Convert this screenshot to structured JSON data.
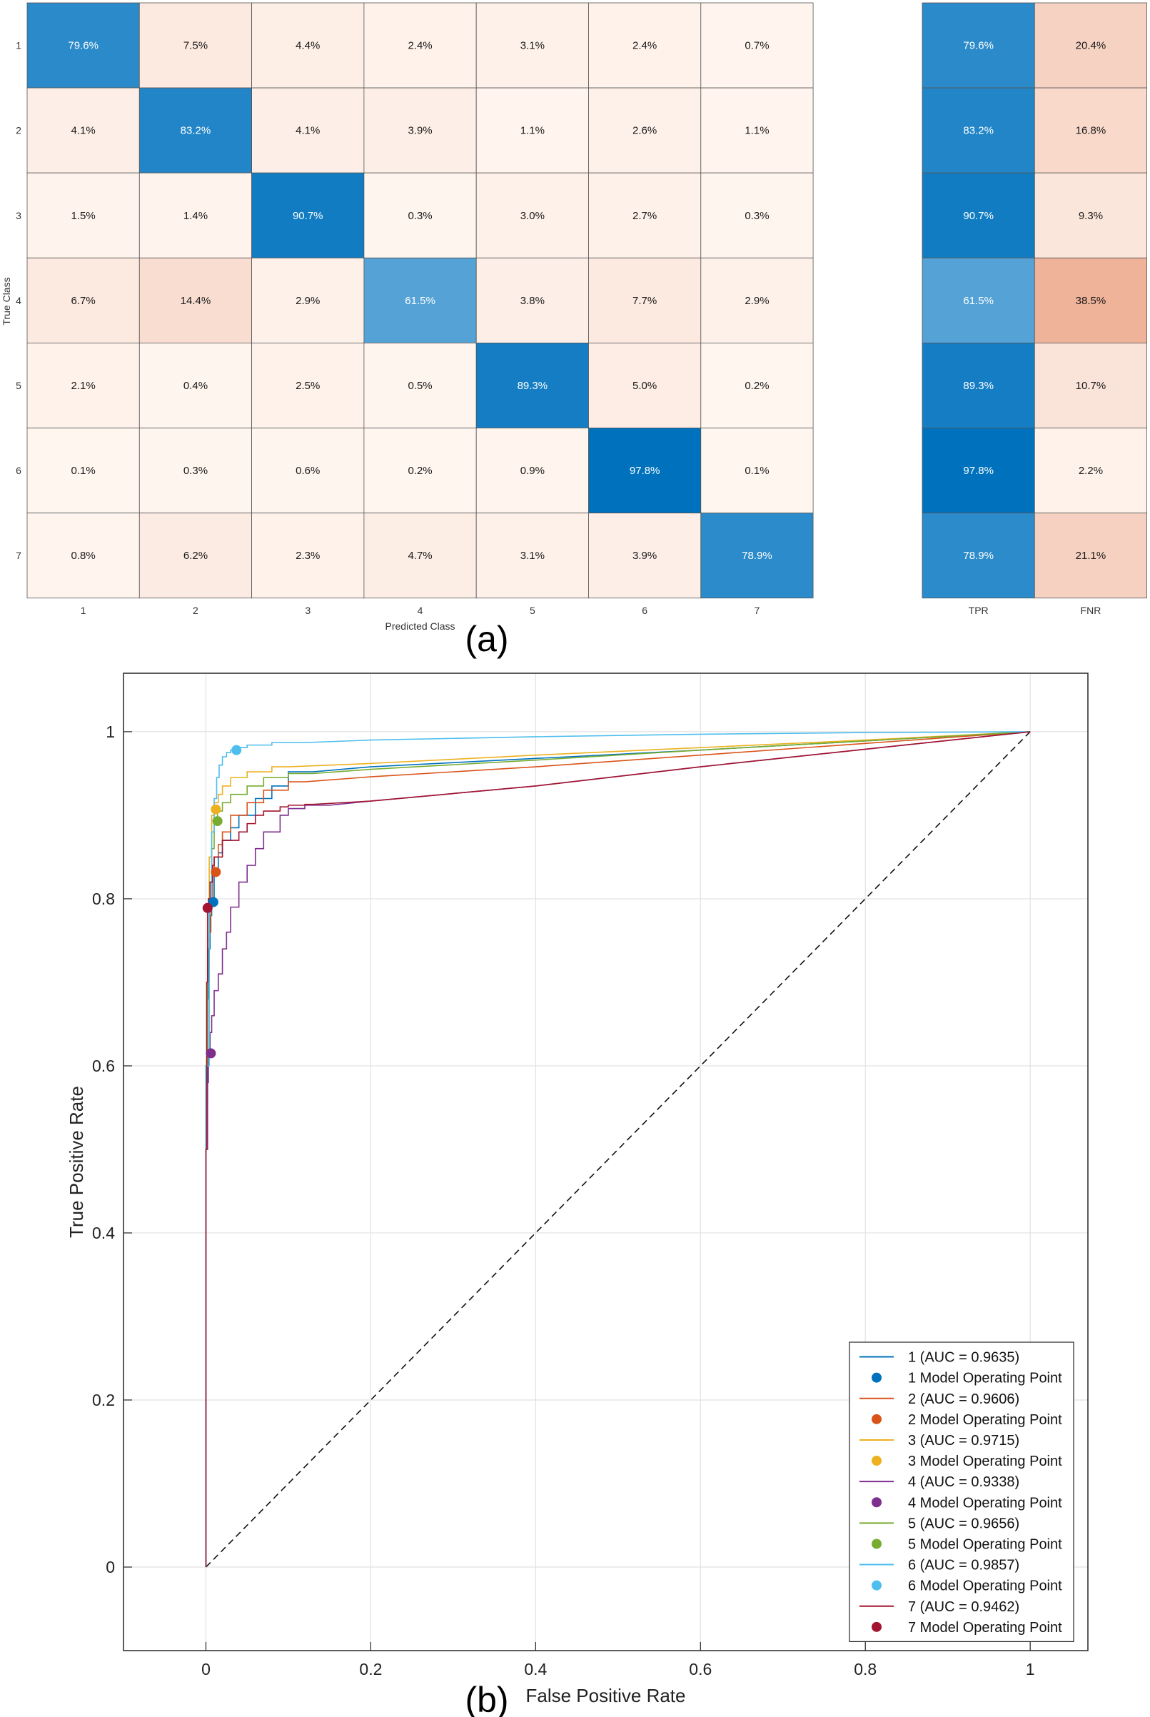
{
  "panels": {
    "a_label": "(a)",
    "b_label": "(b)"
  },
  "colors": {
    "blue": "#0072BD",
    "orange": "#D95319",
    "yellow": "#EDB120",
    "purple": "#7E2F8E",
    "green": "#77AC30",
    "cyan": "#4DBEEE",
    "maroon": "#A2142F"
  },
  "chart_data": [
    {
      "type": "heatmap",
      "title": "",
      "xlabel": "Predicted Class",
      "ylabel": "True Class",
      "row_labels": [
        "1",
        "2",
        "3",
        "4",
        "5",
        "6",
        "7"
      ],
      "col_labels": [
        "1",
        "2",
        "3",
        "4",
        "5",
        "6",
        "7"
      ],
      "values": [
        [
          79.6,
          7.5,
          4.4,
          2.4,
          3.1,
          2.4,
          0.7
        ],
        [
          4.1,
          83.2,
          4.1,
          3.9,
          1.1,
          2.6,
          1.1
        ],
        [
          1.5,
          1.4,
          90.7,
          0.3,
          3.0,
          2.7,
          0.3
        ],
        [
          6.7,
          14.4,
          2.9,
          61.5,
          3.8,
          7.7,
          2.9
        ],
        [
          2.1,
          0.4,
          2.5,
          0.5,
          89.3,
          5.0,
          0.2
        ],
        [
          0.1,
          0.3,
          0.6,
          0.2,
          0.9,
          97.8,
          0.1
        ],
        [
          0.8,
          6.2,
          2.3,
          4.7,
          3.1,
          3.9,
          78.9
        ]
      ],
      "value_suffix": "%",
      "summary": {
        "col_labels": [
          "TPR",
          "FNR"
        ],
        "values": [
          [
            79.6,
            20.4
          ],
          [
            83.2,
            16.8
          ],
          [
            90.7,
            9.3
          ],
          [
            61.5,
            38.5
          ],
          [
            89.3,
            10.7
          ],
          [
            97.8,
            2.2
          ],
          [
            78.9,
            21.1
          ]
        ]
      }
    },
    {
      "type": "line",
      "title": "",
      "xlabel": "False Positive Rate",
      "ylabel": "True Positive Rate",
      "xlim": [
        -0.1,
        1.07
      ],
      "ylim": [
        -0.1,
        1.07
      ],
      "xticks": [
        0,
        0.2,
        0.4,
        0.6,
        0.8,
        1
      ],
      "xtick_labels": [
        "0",
        "0.2",
        "0.4",
        "0.6",
        "0.8",
        "1"
      ],
      "yticks": [
        0,
        0.2,
        0.4,
        0.6,
        0.8,
        1
      ],
      "ytick_labels": [
        "0",
        "0.2",
        "0.4",
        "0.6",
        "0.8",
        "1"
      ],
      "grid": true,
      "legend_position": "bottom-right",
      "diagonal": {
        "x": [
          0,
          1
        ],
        "y": [
          0,
          1
        ],
        "style": "dashed"
      },
      "series": [
        {
          "name": "1 (AUC = 0.9635)",
          "point_name": "1 Model Operating Point",
          "color_key": "blue",
          "x": [
            0,
            0.002,
            0.003,
            0.005,
            0.007,
            0.01,
            0.015,
            0.02,
            0.03,
            0.04,
            0.06,
            0.08,
            0.1,
            0.13,
            0.2,
            0.4,
            0.6,
            0.8,
            1
          ],
          "y": [
            0,
            0.55,
            0.68,
            0.74,
            0.78,
            0.8,
            0.83,
            0.855,
            0.87,
            0.885,
            0.9,
            0.92,
            0.935,
            0.952,
            0.958,
            0.968,
            0.978,
            0.989,
            1
          ],
          "op": [
            0.009,
            0.796
          ]
        },
        {
          "name": "2 (AUC = 0.9606)",
          "point_name": "2 Model Operating Point",
          "color_key": "orange",
          "x": [
            0,
            0.002,
            0.004,
            0.006,
            0.008,
            0.01,
            0.015,
            0.02,
            0.03,
            0.05,
            0.07,
            0.1,
            0.12,
            0.2,
            0.4,
            0.6,
            0.8,
            1
          ],
          "y": [
            0,
            0.6,
            0.7,
            0.76,
            0.8,
            0.832,
            0.85,
            0.865,
            0.88,
            0.9,
            0.915,
            0.93,
            0.94,
            0.946,
            0.958,
            0.972,
            0.986,
            1
          ],
          "op": [
            0.012,
            0.832
          ]
        },
        {
          "name": "3 (AUC = 0.9715)",
          "point_name": "3 Model Operating Point",
          "color_key": "yellow",
          "x": [
            0,
            0.002,
            0.004,
            0.007,
            0.01,
            0.015,
            0.02,
            0.03,
            0.05,
            0.08,
            0.1,
            0.2,
            0.4,
            0.6,
            0.8,
            1
          ],
          "y": [
            0,
            0.6,
            0.75,
            0.85,
            0.9,
            0.915,
            0.925,
            0.935,
            0.945,
            0.952,
            0.958,
            0.962,
            0.972,
            0.981,
            0.99,
            1
          ],
          "op": [
            0.012,
            0.907
          ]
        },
        {
          "name": "4 (AUC = 0.9338)",
          "point_name": "4 Model Operating Point",
          "color_key": "purple",
          "x": [
            0,
            0.002,
            0.003,
            0.005,
            0.007,
            0.01,
            0.015,
            0.02,
            0.025,
            0.03,
            0.04,
            0.05,
            0.06,
            0.07,
            0.09,
            0.1,
            0.12,
            0.15,
            0.2,
            0.4,
            0.6,
            0.8,
            1
          ],
          "y": [
            0,
            0.5,
            0.58,
            0.615,
            0.64,
            0.66,
            0.69,
            0.71,
            0.74,
            0.76,
            0.79,
            0.82,
            0.84,
            0.86,
            0.88,
            0.9,
            0.908,
            0.912,
            0.917,
            0.935,
            0.958,
            0.979,
            1
          ],
          "op": [
            0.006,
            0.615
          ]
        },
        {
          "name": "5 (AUC = 0.9656)",
          "point_name": "5 Model Operating Point",
          "color_key": "green",
          "x": [
            0,
            0.002,
            0.004,
            0.007,
            0.01,
            0.014,
            0.02,
            0.03,
            0.05,
            0.07,
            0.1,
            0.13,
            0.2,
            0.4,
            0.6,
            0.8,
            1
          ],
          "y": [
            0,
            0.6,
            0.72,
            0.8,
            0.86,
            0.893,
            0.905,
            0.915,
            0.925,
            0.935,
            0.945,
            0.95,
            0.955,
            0.966,
            0.978,
            0.989,
            1
          ],
          "op": [
            0.014,
            0.893
          ]
        },
        {
          "name": "6 (AUC = 0.9857)",
          "point_name": "6 Model Operating Point",
          "color_key": "cyan",
          "x": [
            0,
            0.004,
            0.007,
            0.01,
            0.013,
            0.016,
            0.02,
            0.025,
            0.03,
            0.037,
            0.05,
            0.08,
            0.12,
            0.2,
            0.4,
            0.6,
            0.8,
            1
          ],
          "y": [
            0,
            0.6,
            0.8,
            0.88,
            0.92,
            0.945,
            0.96,
            0.97,
            0.975,
            0.978,
            0.981,
            0.984,
            0.987,
            0.99,
            0.994,
            0.997,
            0.999,
            1
          ],
          "op": [
            0.037,
            0.978
          ]
        },
        {
          "name": "7 (AUC = 0.9462)",
          "point_name": "7 Model Operating Point",
          "color_key": "maroon",
          "x": [
            0,
            0.001,
            0.002,
            0.003,
            0.005,
            0.008,
            0.01,
            0.02,
            0.03,
            0.04,
            0.05,
            0.06,
            0.07,
            0.09,
            0.1,
            0.12,
            0.13,
            0.2,
            0.4,
            0.6,
            0.8,
            1
          ],
          "y": [
            0,
            0.5,
            0.7,
            0.789,
            0.8,
            0.82,
            0.84,
            0.85,
            0.87,
            0.87,
            0.88,
            0.89,
            0.9,
            0.905,
            0.91,
            0.912,
            0.913,
            0.917,
            0.935,
            0.958,
            0.979,
            1
          ],
          "op": [
            0.002,
            0.789
          ]
        }
      ]
    }
  ]
}
